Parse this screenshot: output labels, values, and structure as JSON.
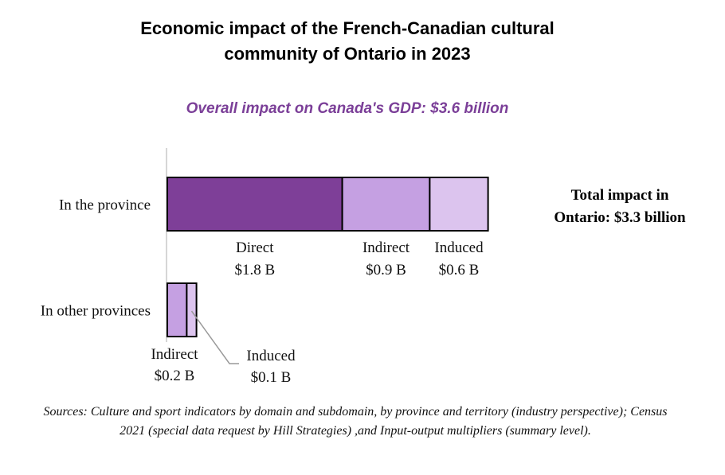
{
  "title_line1": "Economic impact of the French-Canadian cultural",
  "title_line2": "community of Ontario in 2023",
  "subtitle": "Overall impact on Canada's GDP: $3.6 billion",
  "total_line1": "Total impact in",
  "total_line2": "Ontario: $3.3 billion",
  "sources": "Sources: Culture and sport indicators by domain and subdomain, by province and territory (industry perspective); Census 2021 (special data request by Hill Strategies) ,and Input-output multipliers (summary level).",
  "colors": {
    "direct": "#7e3f98",
    "indirect": "#c5a0e2",
    "induced": "#dcc4ee",
    "text_accent": "#7b3f98"
  },
  "chart_data": {
    "type": "bar",
    "orientation": "horizontal",
    "stacked": true,
    "categories": [
      "In the province",
      "In other provinces"
    ],
    "series": [
      {
        "name": "Direct",
        "values": [
          1.8,
          0
        ],
        "value_labels": [
          "$1.8 B",
          ""
        ]
      },
      {
        "name": "Indirect",
        "values": [
          0.9,
          0.2
        ],
        "value_labels": [
          "$0.9 B",
          "$0.2 B"
        ]
      },
      {
        "name": "Induced",
        "values": [
          0.6,
          0.1
        ],
        "value_labels": [
          "$0.6 B",
          "$0.1 B"
        ]
      }
    ],
    "unit": "$ billion",
    "xlim": [
      0,
      3.3
    ],
    "grid": false,
    "legend": "none"
  }
}
